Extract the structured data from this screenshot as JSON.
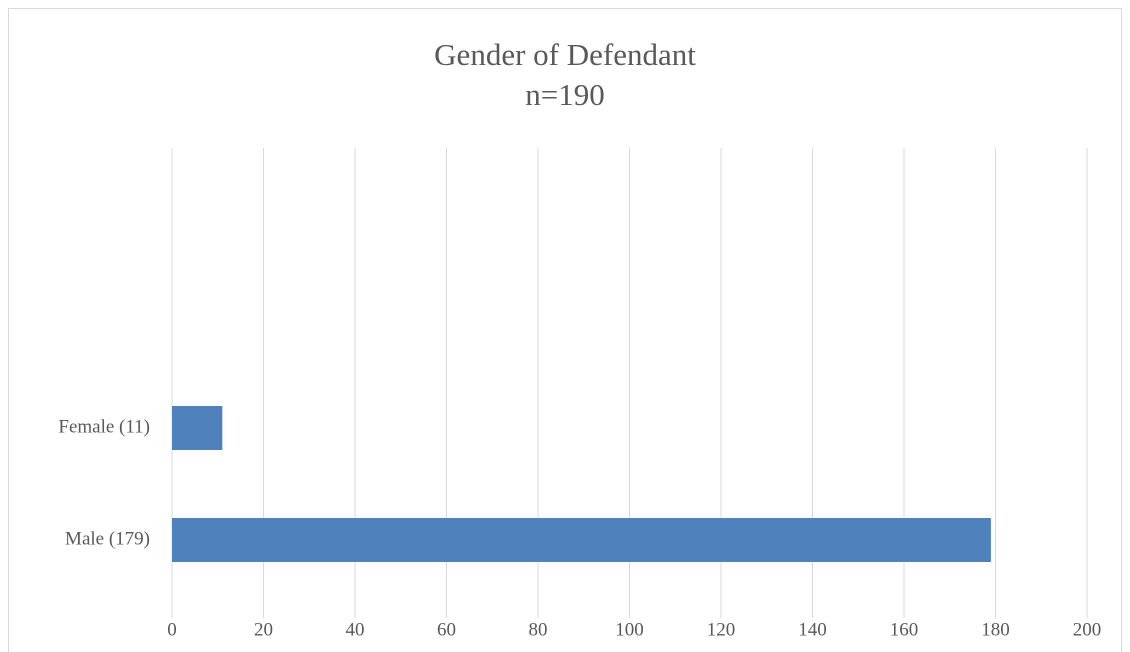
{
  "chart_data": {
    "type": "bar",
    "orientation": "horizontal",
    "title": "Gender of Defendant",
    "subtitle": "n=190",
    "categories": [
      "Male (179)",
      "Female (11)"
    ],
    "values": [
      179,
      11
    ],
    "color": "#4f81bd",
    "xlim": [
      0,
      200
    ],
    "xticks": [
      0,
      20,
      40,
      60,
      80,
      100,
      120,
      140,
      160,
      180,
      200
    ],
    "grid": true
  }
}
